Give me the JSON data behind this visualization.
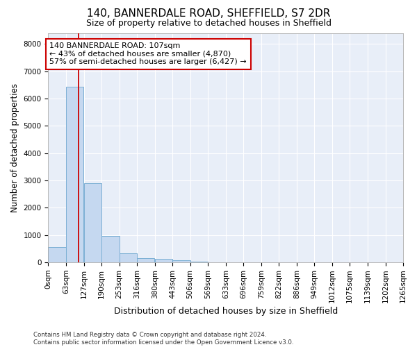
{
  "title": "140, BANNERDALE ROAD, SHEFFIELD, S7 2DR",
  "subtitle": "Size of property relative to detached houses in Sheffield",
  "xlabel": "Distribution of detached houses by size in Sheffield",
  "ylabel": "Number of detached properties",
  "bar_values": [
    550,
    6420,
    2900,
    960,
    340,
    160,
    120,
    75,
    15,
    8,
    5,
    3,
    2,
    1,
    1,
    0,
    0,
    0,
    0,
    0
  ],
  "bin_edges": [
    0,
    63,
    127,
    190,
    253,
    316,
    380,
    443,
    506,
    569,
    633,
    696,
    759,
    822,
    886,
    949,
    1012,
    1075,
    1139,
    1202,
    1265
  ],
  "bar_color": "#c5d8f0",
  "bar_edgecolor": "#7bafd4",
  "bg_color": "#e8eef8",
  "grid_color": "#ffffff",
  "property_sqm": 107,
  "vline_color": "#cc0000",
  "annotation_line1": "140 BANNERDALE ROAD: 107sqm",
  "annotation_line2": "← 43% of detached houses are smaller (4,870)",
  "annotation_line3": "57% of semi-detached houses are larger (6,427) →",
  "annotation_box_color": "#cc0000",
  "ylim": [
    0,
    8400
  ],
  "yticks": [
    0,
    1000,
    2000,
    3000,
    4000,
    5000,
    6000,
    7000,
    8000
  ],
  "footer_line1": "Contains HM Land Registry data © Crown copyright and database right 2024.",
  "footer_line2": "Contains public sector information licensed under the Open Government Licence v3.0.",
  "title_fontsize": 11,
  "subtitle_fontsize": 9,
  "tick_fontsize": 7.5,
  "ylabel_fontsize": 8.5,
  "xlabel_fontsize": 9
}
